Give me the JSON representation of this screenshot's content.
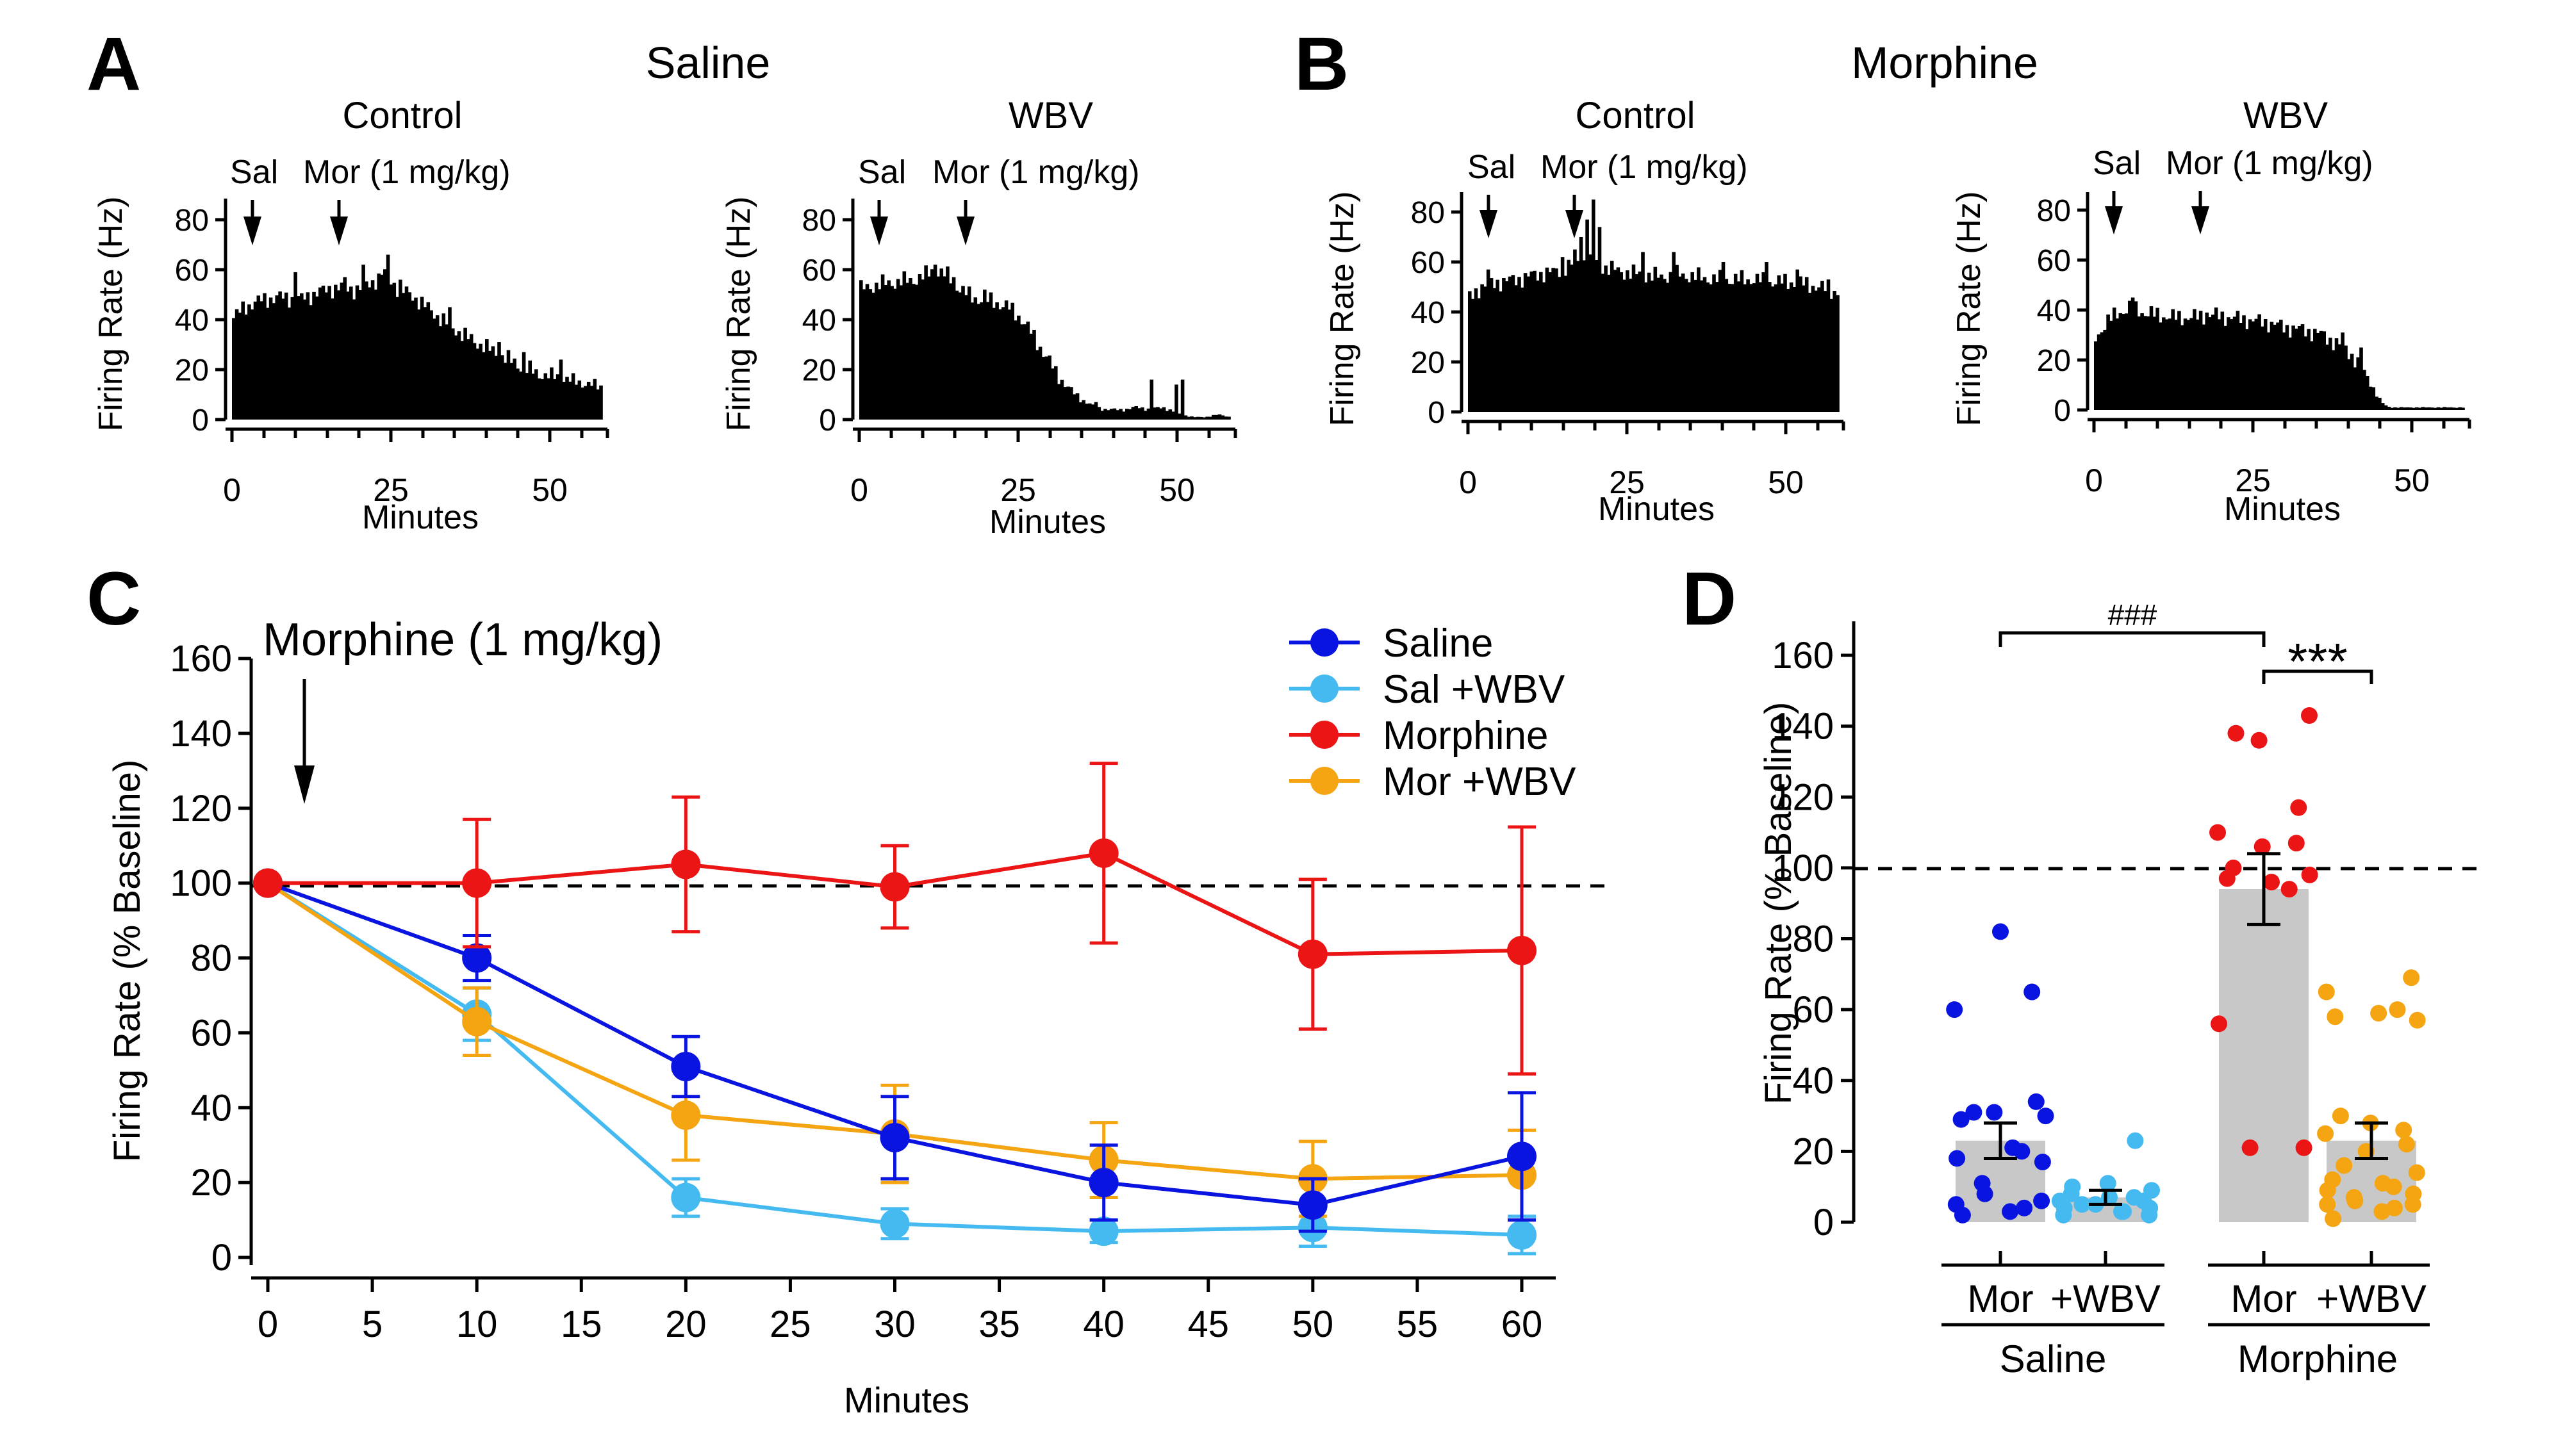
{
  "panel_letters": {
    "a": "A",
    "b": "B",
    "c": "C",
    "d": "D"
  },
  "group_titles": {
    "saline": "Saline",
    "morphine": "Morphine"
  },
  "hist_labels": {
    "control": "Control",
    "wbv": "WBV",
    "sal_marker": "Sal",
    "mor_marker": "Mor (1 mg/kg)",
    "ylabel": "Firing Rate (Hz)",
    "xlabel": "Minutes",
    "yticks": [
      "0",
      "20",
      "40",
      "60",
      "80"
    ],
    "xticks": [
      "0",
      "25",
      "50"
    ]
  },
  "colors": {
    "saline": "#0a14e0",
    "sal_wbv": "#45baf0",
    "morphine": "#ec1515",
    "mor_wbv": "#f5a412",
    "bar": "#c8c8c8"
  },
  "chart_data": [
    {
      "id": "A-control",
      "type": "bar",
      "title": "Control",
      "group": "Saline",
      "xlabel": "Minutes",
      "ylabel": "Firing Rate (Hz)",
      "xlim": [
        0,
        60
      ],
      "ylim": [
        0,
        90
      ],
      "markers": [
        {
          "label": "Sal",
          "x": 3
        },
        {
          "label": "Mor (1 mg/kg)",
          "x": 17
        }
      ],
      "anchors": [
        [
          0,
          40
        ],
        [
          2,
          45
        ],
        [
          5,
          48
        ],
        [
          8,
          49
        ],
        [
          11,
          48
        ],
        [
          14,
          51
        ],
        [
          17,
          53
        ],
        [
          20,
          52
        ],
        [
          22,
          54
        ],
        [
          24,
          57
        ],
        [
          25,
          58
        ],
        [
          27,
          52
        ],
        [
          29,
          50
        ],
        [
          31,
          46
        ],
        [
          33,
          42
        ],
        [
          35,
          38
        ],
        [
          38,
          33
        ],
        [
          41,
          29
        ],
        [
          44,
          25
        ],
        [
          47,
          21
        ],
        [
          50,
          18
        ],
        [
          53,
          17
        ],
        [
          56,
          15
        ],
        [
          58,
          14
        ],
        [
          60,
          13
        ]
      ],
      "spikes": [
        [
          10,
          59
        ],
        [
          18,
          57
        ],
        [
          21,
          62
        ],
        [
          24,
          58
        ],
        [
          25,
          66
        ],
        [
          27,
          56
        ],
        [
          35,
          45
        ],
        [
          43,
          31
        ],
        [
          47,
          27
        ],
        [
          53,
          24
        ]
      ]
    },
    {
      "id": "A-wbv",
      "type": "bar",
      "title": "WBV",
      "group": "Saline",
      "xlabel": "Minutes",
      "ylabel": "Firing Rate (Hz)",
      "xlim": [
        0,
        60
      ],
      "ylim": [
        0,
        90
      ],
      "markers": [
        {
          "label": "Sal",
          "x": 3
        },
        {
          "label": "Mor (1 mg/kg)",
          "x": 17
        }
      ],
      "anchors": [
        [
          0,
          52
        ],
        [
          3,
          54
        ],
        [
          6,
          55
        ],
        [
          9,
          56
        ],
        [
          11,
          58
        ],
        [
          12,
          60
        ],
        [
          14,
          58
        ],
        [
          16,
          53
        ],
        [
          18,
          49
        ],
        [
          20,
          48
        ],
        [
          22,
          47
        ],
        [
          24,
          45
        ],
        [
          26,
          41
        ],
        [
          28,
          34
        ],
        [
          30,
          26
        ],
        [
          32,
          18
        ],
        [
          34,
          12
        ],
        [
          36,
          8
        ],
        [
          38,
          5
        ],
        [
          40,
          4
        ],
        [
          43,
          4
        ],
        [
          45,
          5
        ],
        [
          47,
          4
        ],
        [
          49,
          5
        ],
        [
          52,
          2
        ],
        [
          54,
          1
        ],
        [
          56,
          1
        ],
        [
          58,
          2
        ],
        [
          60,
          1
        ]
      ],
      "spikes": [
        [
          12,
          62
        ],
        [
          15,
          57
        ],
        [
          20,
          52
        ],
        [
          38,
          7
        ],
        [
          47,
          16
        ],
        [
          51,
          14
        ],
        [
          52,
          16
        ]
      ]
    },
    {
      "id": "B-control",
      "type": "bar",
      "title": "Control",
      "group": "Morphine",
      "xlabel": "Minutes",
      "ylabel": "Firing Rate (Hz)",
      "xlim": [
        0,
        60
      ],
      "ylim": [
        0,
        90
      ],
      "markers": [
        {
          "label": "Sal",
          "x": 3
        },
        {
          "label": "Mor (1 mg/kg)",
          "x": 17
        }
      ],
      "anchors": [
        [
          0,
          45
        ],
        [
          2,
          50
        ],
        [
          5,
          52
        ],
        [
          8,
          53
        ],
        [
          11,
          55
        ],
        [
          14,
          56
        ],
        [
          16,
          58
        ],
        [
          18,
          60
        ],
        [
          20,
          60
        ],
        [
          22,
          58
        ],
        [
          25,
          56
        ],
        [
          28,
          55
        ],
        [
          31,
          54
        ],
        [
          34,
          55
        ],
        [
          37,
          54
        ],
        [
          40,
          53
        ],
        [
          43,
          53
        ],
        [
          46,
          53
        ],
        [
          49,
          52
        ],
        [
          52,
          52
        ],
        [
          55,
          51
        ],
        [
          58,
          49
        ],
        [
          60,
          48
        ]
      ],
      "spikes": [
        [
          3,
          57
        ],
        [
          15,
          62
        ],
        [
          17,
          65
        ],
        [
          18,
          70
        ],
        [
          19,
          77
        ],
        [
          20,
          85
        ],
        [
          21,
          74
        ],
        [
          28,
          64
        ],
        [
          33,
          64
        ],
        [
          41,
          60
        ],
        [
          48,
          60
        ],
        [
          53,
          57
        ],
        [
          58,
          53
        ]
      ]
    },
    {
      "id": "B-wbv",
      "type": "bar",
      "title": "WBV",
      "group": "Morphine",
      "xlabel": "Minutes",
      "ylabel": "Firing Rate (Hz)",
      "xlim": [
        0,
        60
      ],
      "ylim": [
        0,
        90
      ],
      "markers": [
        {
          "label": "Sal",
          "x": 3
        },
        {
          "label": "Mor (1 mg/kg)",
          "x": 17
        }
      ],
      "anchors": [
        [
          0,
          28
        ],
        [
          2,
          35
        ],
        [
          4,
          39
        ],
        [
          6,
          41
        ],
        [
          8,
          39
        ],
        [
          10,
          38
        ],
        [
          13,
          37
        ],
        [
          16,
          37
        ],
        [
          19,
          38
        ],
        [
          22,
          37
        ],
        [
          25,
          36
        ],
        [
          28,
          35
        ],
        [
          31,
          33
        ],
        [
          34,
          32
        ],
        [
          37,
          30
        ],
        [
          39,
          27
        ],
        [
          41,
          24
        ],
        [
          42,
          21
        ],
        [
          43,
          18
        ],
        [
          44,
          14
        ],
        [
          45,
          10
        ],
        [
          46,
          5
        ],
        [
          47,
          2
        ],
        [
          48,
          1
        ],
        [
          60,
          1
        ]
      ],
      "spikes": [
        [
          6,
          45
        ],
        [
          18,
          39
        ],
        [
          40,
          31
        ],
        [
          43,
          25
        ]
      ]
    },
    {
      "id": "C",
      "type": "line",
      "title": "Morphine (1 mg/kg)",
      "xlabel": "Minutes",
      "ylabel": "Firing Rate (% Baseline)",
      "xlim": [
        0,
        60
      ],
      "ylim": [
        0,
        160
      ],
      "xticks": [
        0,
        5,
        10,
        15,
        20,
        25,
        30,
        35,
        40,
        45,
        50,
        55,
        60
      ],
      "yticks": [
        0,
        20,
        40,
        60,
        80,
        100,
        120,
        140,
        160
      ],
      "reference_line": 100,
      "x": [
        0,
        10,
        20,
        30,
        40,
        50,
        60
      ],
      "series": [
        {
          "name": "Saline",
          "color_key": "saline",
          "values": [
            100,
            80,
            51,
            32,
            20,
            14,
            27
          ],
          "err": [
            0,
            6,
            8,
            11,
            10,
            7,
            17
          ]
        },
        {
          "name": "Sal +WBV",
          "color_key": "sal_wbv",
          "values": [
            100,
            65,
            16,
            9,
            7,
            8,
            6
          ],
          "err": [
            0,
            7,
            5,
            4,
            3,
            5,
            5
          ]
        },
        {
          "name": "Morphine",
          "color_key": "morphine",
          "values": [
            100,
            100,
            105,
            99,
            108,
            81,
            82
          ],
          "err": [
            0,
            17,
            18,
            11,
            24,
            20,
            33
          ]
        },
        {
          "name": "Mor +WBV",
          "color_key": "mor_wbv",
          "values": [
            100,
            63,
            38,
            33,
            26,
            21,
            22
          ],
          "err": [
            0,
            9,
            12,
            13,
            10,
            10,
            12
          ]
        }
      ]
    },
    {
      "id": "D",
      "type": "bar",
      "ylabel": "Firing Rate (% Baseline)",
      "ylim": [
        0,
        170
      ],
      "yticks": [
        0,
        20,
        40,
        60,
        80,
        100,
        120,
        140,
        160
      ],
      "reference_line": 100,
      "categories": [
        "Mor",
        "+WBV",
        "Mor",
        "+WBV"
      ],
      "groups": [
        "Saline",
        "Morphine"
      ],
      "values": [
        23,
        7,
        94,
        23
      ],
      "err": [
        5,
        2,
        10,
        5
      ],
      "point_color_keys": [
        "saline",
        "sal_wbv",
        "morphine",
        "mor_wbv"
      ],
      "points": [
        [
          82,
          65,
          60,
          34,
          31,
          31,
          30,
          29,
          21,
          20,
          18,
          17,
          11,
          8,
          6,
          5,
          4,
          3,
          2
        ],
        [
          23,
          11,
          10,
          9,
          8,
          7,
          7,
          6,
          6,
          5,
          5,
          4,
          4,
          3,
          3,
          2,
          2
        ],
        [
          143,
          138,
          136,
          117,
          110,
          107,
          106,
          100,
          98,
          97,
          96,
          94,
          56,
          21,
          21
        ],
        [
          69,
          65,
          60,
          59,
          58,
          57,
          30,
          28,
          26,
          25,
          22,
          20,
          16,
          14,
          12,
          11,
          10,
          9,
          8,
          7,
          6,
          5,
          5,
          4,
          3,
          1
        ]
      ],
      "significance": [
        {
          "label": "###",
          "between": [
            0,
            2
          ]
        },
        {
          "label": "***",
          "between": [
            2,
            3
          ]
        }
      ]
    }
  ]
}
